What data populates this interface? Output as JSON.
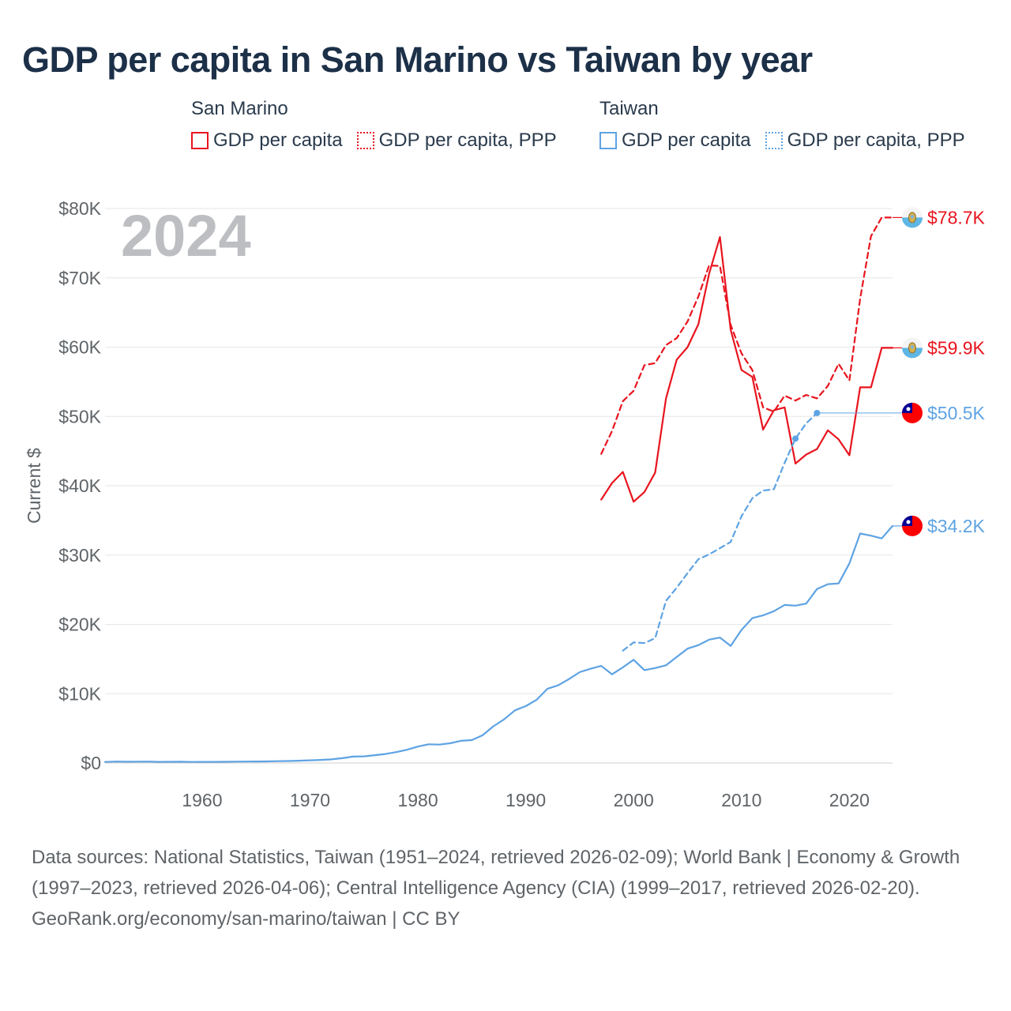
{
  "title": "GDP per capita in San Marino vs Taiwan by year",
  "legend": {
    "groups": [
      {
        "name": "San Marino",
        "color": "#e8141e",
        "items": [
          {
            "label": "GDP per capita",
            "style": "solid"
          },
          {
            "label": "GDP per capita, PPP",
            "style": "dotted"
          }
        ]
      },
      {
        "name": "Taiwan",
        "color": "#5ea3e3",
        "items": [
          {
            "label": "GDP per capita",
            "style": "solid"
          },
          {
            "label": "GDP per capita, PPP",
            "style": "dotted"
          }
        ]
      }
    ]
  },
  "chart_data": {
    "type": "line",
    "year_watermark": "2024",
    "ylabel": "Current $",
    "ylim": [
      0,
      80000
    ],
    "xlim": [
      1951,
      2024
    ],
    "y_ticks": [
      0,
      10000,
      20000,
      30000,
      40000,
      50000,
      60000,
      70000,
      80000
    ],
    "y_tick_labels": [
      "$0",
      "$10K",
      "$20K",
      "$30K",
      "$40K",
      "$50K",
      "$60K",
      "$70K",
      "$80K"
    ],
    "x_ticks": [
      1960,
      1970,
      1980,
      1990,
      2000,
      2010,
      2020
    ],
    "x_tick_labels": [
      "1960",
      "1970",
      "1980",
      "1990",
      "2000",
      "2010",
      "2020"
    ],
    "grid": true,
    "series": [
      {
        "name": "San Marino GDP per capita, PPP",
        "country": "San Marino",
        "color": "#e8141e",
        "dash": "dashed",
        "x": [
          1997,
          1998,
          1999,
          2000,
          2001,
          2002,
          2003,
          2004,
          2005,
          2006,
          2007,
          2008,
          2009,
          2010,
          2011,
          2012,
          2013,
          2014,
          2015,
          2016,
          2017,
          2018,
          2019,
          2020,
          2021,
          2022,
          2023,
          2024
        ],
        "y": [
          44600,
          47900,
          52200,
          53700,
          57400,
          57700,
          60300,
          61300,
          63700,
          67300,
          71800,
          71700,
          63200,
          59100,
          56700,
          51300,
          50700,
          53000,
          52300,
          53100,
          52600,
          54400,
          57600,
          55200,
          67000,
          76000,
          78700,
          78700
        ],
        "end_label": "$78.7K",
        "end_value": 78700
      },
      {
        "name": "San Marino GDP per capita",
        "country": "San Marino",
        "color": "#e8141e",
        "dash": "solid",
        "x": [
          1997,
          1998,
          1999,
          2000,
          2001,
          2002,
          2003,
          2004,
          2005,
          2006,
          2007,
          2008,
          2009,
          2010,
          2011,
          2012,
          2013,
          2014,
          2015,
          2016,
          2017,
          2018,
          2019,
          2020,
          2021,
          2022,
          2023,
          2024
        ],
        "y": [
          38000,
          40400,
          42000,
          37700,
          39100,
          41900,
          52600,
          58200,
          60000,
          63300,
          70600,
          75900,
          62500,
          56700,
          55700,
          48100,
          50900,
          51300,
          43200,
          44500,
          45300,
          48000,
          46700,
          44400,
          54200,
          54200,
          59900,
          59900
        ],
        "end_label": "$59.9K",
        "end_value": 59900
      },
      {
        "name": "Taiwan GDP per capita, PPP",
        "country": "Taiwan",
        "color": "#5ea3e3",
        "dash": "dashed",
        "x": [
          1999,
          2000,
          2001,
          2002,
          2003,
          2004,
          2005,
          2006,
          2007,
          2008,
          2009,
          2010,
          2011,
          2012,
          2013,
          2014,
          2015,
          2016,
          2017
        ],
        "y": [
          16200,
          17400,
          17300,
          18000,
          23400,
          25300,
          27400,
          29400,
          30100,
          31000,
          31900,
          35600,
          38200,
          39300,
          39500,
          43300,
          46800,
          49000,
          50500
        ],
        "markers": [
          2015,
          2017
        ],
        "end_label": "$50.5K",
        "end_value": 50500
      },
      {
        "name": "Taiwan GDP per capita",
        "country": "Taiwan",
        "color": "#5ea3e3",
        "dash": "solid",
        "x": [
          1951,
          1952,
          1953,
          1954,
          1955,
          1956,
          1957,
          1958,
          1959,
          1960,
          1961,
          1962,
          1963,
          1964,
          1965,
          1966,
          1967,
          1968,
          1969,
          1970,
          1971,
          1972,
          1973,
          1974,
          1975,
          1976,
          1977,
          1978,
          1979,
          1980,
          1981,
          1982,
          1983,
          1984,
          1985,
          1986,
          1987,
          1988,
          1989,
          1990,
          1991,
          1992,
          1993,
          1994,
          1995,
          1996,
          1997,
          1998,
          1999,
          2000,
          2001,
          2002,
          2003,
          2004,
          2005,
          2006,
          2007,
          2008,
          2009,
          2010,
          2011,
          2012,
          2013,
          2014,
          2015,
          2016,
          2017,
          2018,
          2019,
          2020,
          2021,
          2022,
          2023,
          2024
        ],
        "y": [
          150,
          200,
          180,
          190,
          210,
          160,
          170,
          180,
          150,
          160,
          160,
          170,
          190,
          210,
          220,
          230,
          260,
          290,
          330,
          390,
          440,
          520,
          690,
          920,
          960,
          1130,
          1300,
          1570,
          1920,
          2370,
          2700,
          2650,
          2850,
          3200,
          3300,
          4000,
          5300,
          6300,
          7600,
          8200,
          9100,
          10700,
          11200,
          12100,
          13100,
          13600,
          14000,
          12800,
          13800,
          14900,
          13400,
          13700,
          14100,
          15300,
          16500,
          17000,
          17800,
          18100,
          16900,
          19200,
          20900,
          21300,
          21900,
          22800,
          22700,
          23000,
          25100,
          25800,
          25900,
          28800,
          33100,
          32800,
          32400,
          34200
        ],
        "end_label": "$34.2K",
        "end_value": 34200
      }
    ]
  },
  "footer": {
    "sources": "Data sources: National Statistics, Taiwan (1951–2024, retrieved 2026-02-09); World Bank | Economy & Growth (1997–2023, retrieved 2026-04-06); Central Intelligence Agency (CIA) (1999–2017, retrieved 2026-02-20).",
    "credit": "GeoRank.org/economy/san-marino/taiwan | CC BY"
  }
}
